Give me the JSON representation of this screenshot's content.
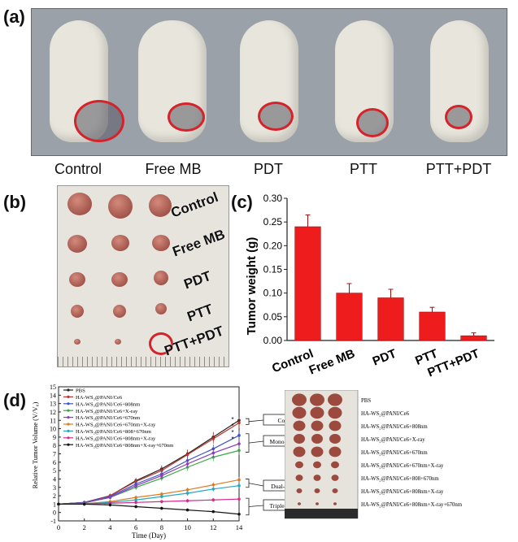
{
  "panel_labels": {
    "a": "(a)",
    "b": "(b)",
    "c": "(c)",
    "d": "(d)"
  },
  "panel_a": {
    "groups": [
      "Control",
      "Free MB",
      "PDT",
      "PTT",
      "PTT+PDT"
    ]
  },
  "panel_b": {
    "row_labels": [
      "Control",
      "Free MB",
      "PDT",
      "PTT",
      "PTT+PDT"
    ]
  },
  "chart_c": {
    "type": "bar",
    "ylabel": "Tumor weight (g)",
    "categories": [
      "Control",
      "Free MB",
      "PDT",
      "PTT",
      "PTT+PDT"
    ],
    "values": [
      0.24,
      0.1,
      0.09,
      0.06,
      0.01
    ],
    "errors": [
      0.025,
      0.02,
      0.018,
      0.01,
      0.006
    ],
    "ylim": [
      0,
      0.3
    ],
    "yticks": [
      "0.00",
      "0.05",
      "0.10",
      "0.15",
      "0.20",
      "0.25",
      "0.30"
    ],
    "bar_color": "#ee1c1c"
  },
  "chart_d": {
    "type": "line",
    "xlabel": "Time (Day)",
    "ylabel": "Relative Tumor Volume (V/V₀)",
    "x": [
      0,
      2,
      4,
      6,
      8,
      10,
      12,
      14
    ],
    "xticks": [
      "0",
      "2",
      "4",
      "6",
      "8",
      "10",
      "12",
      "14"
    ],
    "yticks": [
      "-1",
      "0",
      "1",
      "2",
      "3",
      "4",
      "5",
      "6",
      "7",
      "8",
      "9",
      "10",
      "11",
      "12",
      "13",
      "14",
      "15"
    ],
    "ylim": [
      -1,
      15
    ],
    "series": [
      {
        "name": "PBS",
        "color": "#222222",
        "values": [
          1,
          1.2,
          2.0,
          3.8,
          5.2,
          7.0,
          9.0,
          11.0
        ]
      },
      {
        "name": "HA-WS₂@PANI/Ce6",
        "color": "#c0342c",
        "values": [
          1,
          1.2,
          2.0,
          3.7,
          5.0,
          6.9,
          8.8,
          10.7
        ]
      },
      {
        "name": "HA-WS₂@PANI/Ce6+808nm",
        "color": "#3b53c4",
        "values": [
          1,
          1.2,
          1.9,
          3.4,
          4.6,
          6.2,
          7.6,
          9.2
        ]
      },
      {
        "name": "HA-WS₂@PANI/Ce6+X-ray",
        "color": "#3aa845",
        "values": [
          1,
          1.15,
          1.8,
          3.0,
          4.1,
          5.4,
          6.6,
          7.4
        ]
      },
      {
        "name": "HA-WS₂@PANI/Ce6+670nm",
        "color": "#8a3fb8",
        "values": [
          1,
          1.15,
          1.8,
          3.2,
          4.4,
          5.8,
          7.1,
          8.2
        ]
      },
      {
        "name": "HA-WS₂@PANI/Ce6+670nm+X-ray",
        "color": "#e07a1f",
        "values": [
          1,
          1.05,
          1.3,
          1.8,
          2.2,
          2.7,
          3.3,
          3.9
        ]
      },
      {
        "name": "HA-WS₂@PANI/Ce6+808+670nm",
        "color": "#25a7c4",
        "values": [
          1,
          1.05,
          1.2,
          1.5,
          1.9,
          2.3,
          2.8,
          3.2
        ]
      },
      {
        "name": "HA-WS₂@PANI/Ce6+808nm+X-ray",
        "color": "#d42a8c",
        "values": [
          1,
          1.0,
          1.1,
          1.2,
          1.3,
          1.4,
          1.5,
          1.6
        ]
      },
      {
        "name": "HA-WS₂@PANI/Ce6+808nm+X-ray+670nm",
        "color": "#151515",
        "values": [
          1,
          1.0,
          0.9,
          0.7,
          0.5,
          0.3,
          0.1,
          -0.2
        ]
      }
    ],
    "brackets": [
      "Control",
      "Mono-therapy",
      "Dual-therapy",
      "Triple-therapy"
    ],
    "photo_labels": [
      "PBS",
      "HA-WS₂@PANI/Ce6",
      "HA-WS₂@PANI/Ce6+808nm",
      "HA-WS₂@PANI/Ce6+X-ray",
      "HA-WS₂@PANI/Ce6+670nm",
      "HA-WS₂@PANI/Ce6+670nm+X-ray",
      "HA-WS₂@PANI/Ce6+808+670nm",
      "HA-WS₂@PANI/Ce6+808nm+X-ray",
      "HA-WS₂@PANI/Ce6+808nm+X-ray+670nm"
    ]
  }
}
